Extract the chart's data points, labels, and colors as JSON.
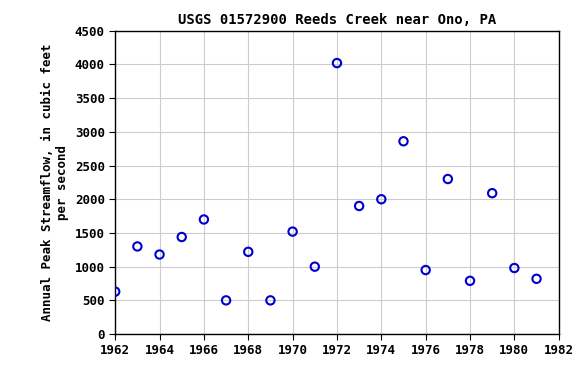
{
  "title": "USGS 01572900 Reeds Creek near Ono, PA",
  "ylabel_line1": "Annual Peak Streamflow, in cubic feet",
  "ylabel_line2": "per second",
  "xlim": [
    1962,
    1982
  ],
  "ylim": [
    0,
    4500
  ],
  "xticks": [
    1962,
    1964,
    1966,
    1968,
    1970,
    1972,
    1974,
    1976,
    1978,
    1980,
    1982
  ],
  "yticks": [
    0,
    500,
    1000,
    1500,
    2000,
    2500,
    3000,
    3500,
    4000,
    4500
  ],
  "years": [
    1962,
    1963,
    1964,
    1965,
    1966,
    1967,
    1968,
    1969,
    1970,
    1971,
    1972,
    1973,
    1974,
    1975,
    1976,
    1977,
    1978,
    1979,
    1980,
    1981
  ],
  "flows": [
    630,
    1300,
    1180,
    1440,
    1700,
    500,
    1220,
    500,
    1520,
    1000,
    4020,
    1900,
    2000,
    2860,
    950,
    2300,
    790,
    2090,
    980,
    820
  ],
  "marker_color": "#0000cc",
  "marker_size": 6,
  "marker_lw": 1.5,
  "grid_color": "#cccccc",
  "bg_color": "#ffffff",
  "title_fontsize": 10,
  "label_fontsize": 9,
  "tick_fontsize": 9
}
